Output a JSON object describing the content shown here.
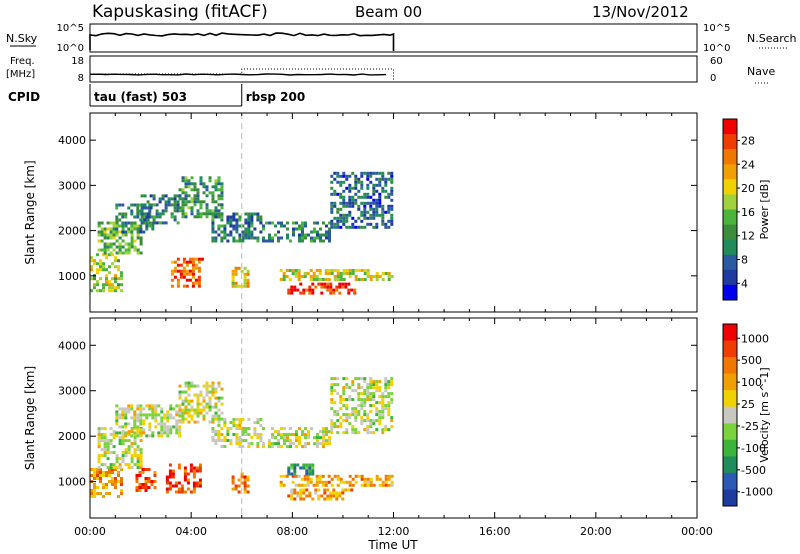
{
  "header": {
    "station": "Kapuskasing (fitACF)",
    "beam": "Beam 00",
    "date": "13/Nov/2012"
  },
  "summary": {
    "nsky_label": "N.Sky",
    "nsky_ticks": [
      "10^5",
      "10^0"
    ],
    "nsearch_label": "N.Search",
    "freq_label_line1": "Freq.",
    "freq_label_line2": "[MHz]",
    "freq_ticks": [
      "18",
      "8"
    ],
    "nave_label": "Nave",
    "nave_ticks": [
      "60",
      "0"
    ],
    "cpid_label": "CPID",
    "cpid_modes": [
      {
        "name": "tau (fast) 503",
        "start_hour": 0
      },
      {
        "name": "rbsp 200",
        "start_hour": 6
      }
    ]
  },
  "colors": {
    "power_scale": [
      "#0000f0",
      "#1e3ca0",
      "#2a5aa0",
      "#228b5a",
      "#3c8c3c",
      "#4cb43c",
      "#a0d23c",
      "#f0d200",
      "#f0a000",
      "#f07800",
      "#f03c00",
      "#f00000"
    ],
    "velocity_scale": [
      "#1e3ca0",
      "#2a5ab4",
      "#228b5a",
      "#3cb43c",
      "#7ad23c",
      "#c8c8c0",
      "#f0d200",
      "#f0a000",
      "#f07800",
      "#f03c00",
      "#f00000"
    ]
  },
  "chart_data": [
    {
      "type": "heatmap",
      "name": "power-panel",
      "ylabel": "Slant Range [km]",
      "x_range_hours": [
        0,
        24
      ],
      "y_range_km": [
        200,
        4600
      ],
      "y_ticks": [
        1000,
        2000,
        3000,
        4000
      ],
      "colorbar_label": "Power [dB]",
      "colorbar_ticks": [
        "28",
        "24",
        "20",
        "16",
        "12",
        "8",
        "4"
      ],
      "data_extent_hours": [
        0,
        12
      ],
      "regions": [
        {
          "h0": 0.0,
          "h1": 1.3,
          "r0": 700,
          "r1": 1500,
          "level": 0.55
        },
        {
          "h0": 0.3,
          "h1": 2.0,
          "r0": 1500,
          "r1": 2200,
          "level": 0.45
        },
        {
          "h0": 1.0,
          "h1": 2.5,
          "r0": 2000,
          "r1": 2600,
          "level": 0.3
        },
        {
          "h0": 2.0,
          "h1": 3.5,
          "r0": 2200,
          "r1": 2800,
          "level": 0.25
        },
        {
          "h0": 3.2,
          "h1": 4.4,
          "r0": 800,
          "r1": 1400,
          "level": 0.85
        },
        {
          "h0": 3.5,
          "h1": 5.2,
          "r0": 2300,
          "r1": 3200,
          "level": 0.35
        },
        {
          "h0": 4.8,
          "h1": 6.8,
          "r0": 1800,
          "r1": 2400,
          "level": 0.25
        },
        {
          "h0": 5.6,
          "h1": 6.2,
          "r0": 800,
          "r1": 1200,
          "level": 0.65
        },
        {
          "h0": 6.8,
          "h1": 9.5,
          "r0": 1800,
          "r1": 2200,
          "level": 0.3
        },
        {
          "h0": 7.5,
          "h1": 11.9,
          "r0": 900,
          "r1": 1150,
          "level": 0.6
        },
        {
          "h0": 7.8,
          "h1": 10.5,
          "r0": 650,
          "r1": 850,
          "level": 0.95
        },
        {
          "h0": 9.5,
          "h1": 11.9,
          "r0": 2100,
          "r1": 3300,
          "level": 0.2
        }
      ]
    },
    {
      "type": "heatmap",
      "name": "velocity-panel",
      "xlabel": "Time UT",
      "ylabel": "Slant Range [km]",
      "x_range_hours": [
        0,
        24
      ],
      "y_range_km": [
        200,
        4600
      ],
      "y_ticks": [
        1000,
        2000,
        3000,
        4000
      ],
      "x_ticks": [
        "00:00",
        "04:00",
        "08:00",
        "12:00",
        "16:00",
        "20:00",
        "00:00"
      ],
      "colorbar_label": "Velocity [m s^-1]",
      "colorbar_ticks": [
        "1000",
        "500",
        "100",
        "25",
        "-25",
        "-100",
        "-500",
        "-1000"
      ],
      "data_extent_hours": [
        0,
        12
      ],
      "regions": [
        {
          "h0": 0.0,
          "h1": 1.3,
          "r0": 700,
          "r1": 1300,
          "level": 0.75
        },
        {
          "h0": 0.3,
          "h1": 2.0,
          "r0": 1300,
          "r1": 2200,
          "level": 0.5
        },
        {
          "h0": 1.0,
          "h1": 3.5,
          "r0": 2000,
          "r1": 2700,
          "level": 0.5
        },
        {
          "h0": 1.8,
          "h1": 2.6,
          "r0": 800,
          "r1": 1300,
          "level": 0.85
        },
        {
          "h0": 3.0,
          "h1": 4.4,
          "r0": 800,
          "r1": 1400,
          "level": 0.9
        },
        {
          "h0": 3.5,
          "h1": 5.2,
          "r0": 2300,
          "r1": 3200,
          "level": 0.5
        },
        {
          "h0": 4.8,
          "h1": 6.8,
          "r0": 1800,
          "r1": 2400,
          "level": 0.5
        },
        {
          "h0": 5.6,
          "h1": 6.2,
          "r0": 800,
          "r1": 1200,
          "level": 0.8
        },
        {
          "h0": 6.8,
          "h1": 9.5,
          "r0": 1800,
          "r1": 2200,
          "level": 0.5
        },
        {
          "h0": 7.5,
          "h1": 11.9,
          "r0": 900,
          "r1": 1150,
          "level": 0.7
        },
        {
          "h0": 7.8,
          "h1": 10.5,
          "r0": 650,
          "r1": 850,
          "level": 0.7
        },
        {
          "h0": 7.8,
          "h1": 8.8,
          "r0": 1150,
          "r1": 1400,
          "level": 0.2
        },
        {
          "h0": 9.5,
          "h1": 11.9,
          "r0": 2100,
          "r1": 3300,
          "level": 0.5
        }
      ]
    }
  ]
}
